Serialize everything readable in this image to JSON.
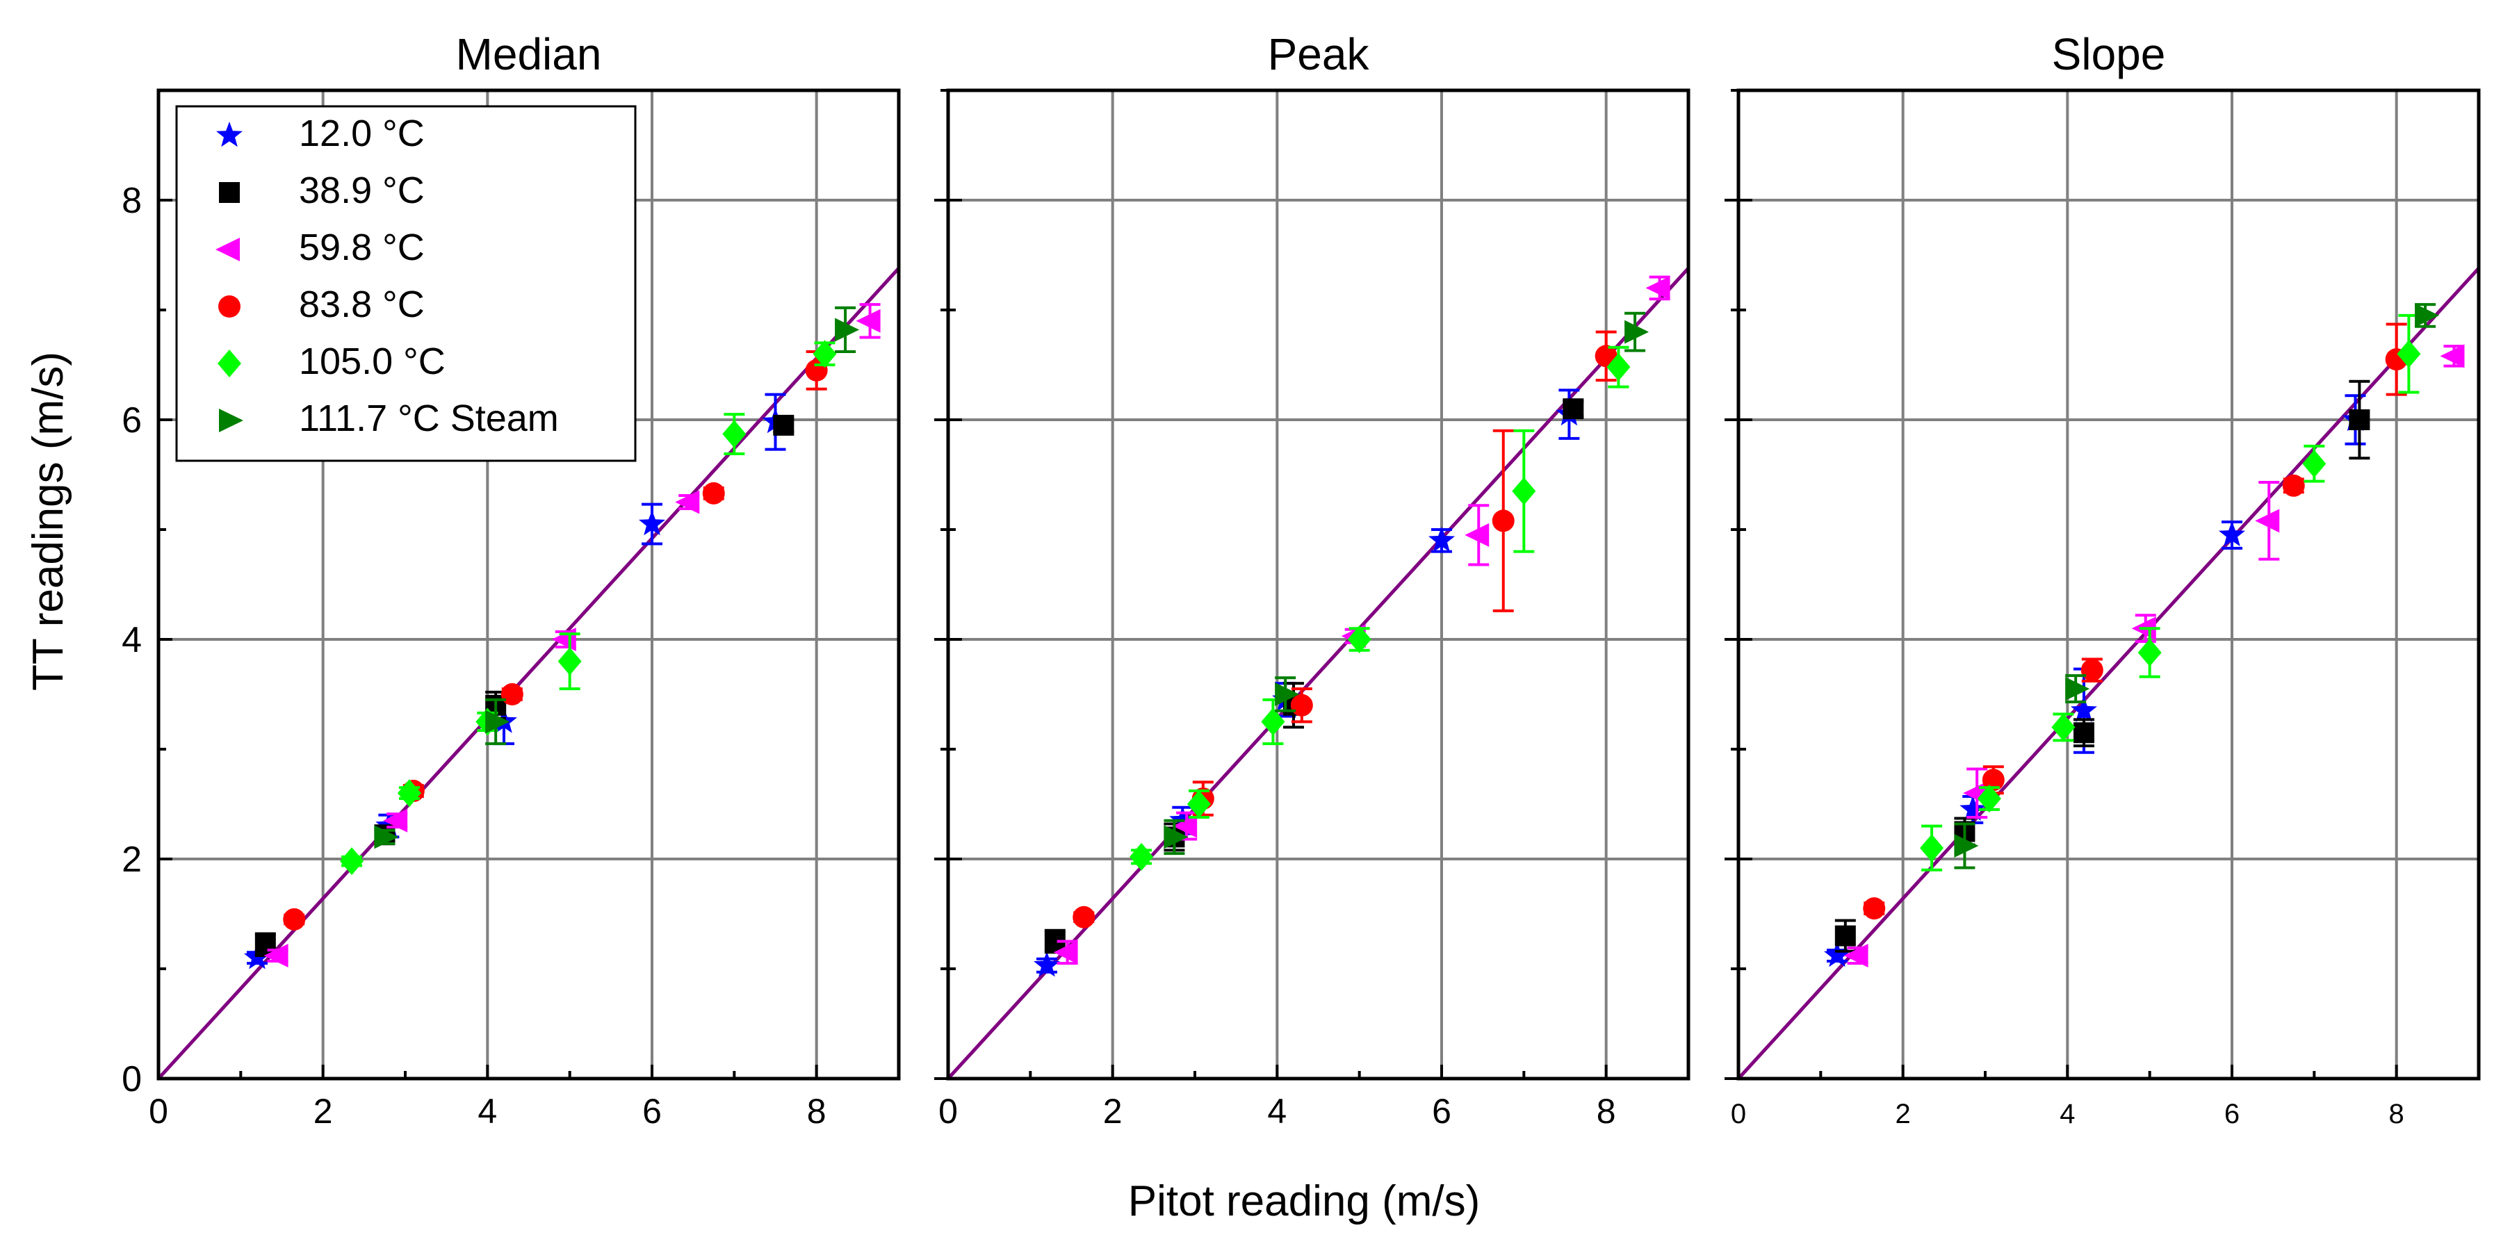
{
  "figure": {
    "x_axis_label": "Pitot reading (m/s)",
    "y_axis_label": "TT readings (m/s)"
  },
  "legend": {
    "placement": "top-left",
    "entries": [
      {
        "label": "12.0 °C",
        "marker": "star-icon",
        "color": "#0000ff"
      },
      {
        "label": "38.9 °C",
        "marker": "square-icon",
        "color": "#000000"
      },
      {
        "label": "59.8 °C",
        "marker": "left-triangle-icon",
        "color": "#ff00ff"
      },
      {
        "label": "83.8 °C",
        "marker": "circle-icon",
        "color": "#ff0000"
      },
      {
        "label": "105.0 °C",
        "marker": "diamond-icon",
        "color": "#00ff00"
      },
      {
        "label": "111.7 °C Steam",
        "marker": "right-triangle-icon",
        "color": "#007f00"
      }
    ]
  },
  "fit_line": {
    "color": "#800080",
    "slope": 0.82,
    "intercept": 0
  },
  "chart_data": [
    {
      "type": "scatter",
      "title": "Median",
      "xlabel": "Pitot reading (m/s)",
      "ylabel": "TT readings (m/s)",
      "xlim": [
        0,
        9
      ],
      "ylim": [
        0,
        9
      ],
      "xticks": [
        "0",
        "2",
        "4",
        "6",
        "8"
      ],
      "yticks": [
        "0",
        "2",
        "4",
        "6",
        "8"
      ],
      "grid": true,
      "series": [
        {
          "name": "12.0 °C",
          "points": [
            [
              1.2,
              1.1,
              0.05
            ],
            [
              2.8,
              2.3,
              0.1
            ],
            [
              4.2,
              3.25,
              0.2
            ],
            [
              6.0,
              5.05,
              0.18
            ],
            [
              7.5,
              5.98,
              0.25
            ]
          ]
        },
        {
          "name": "38.9 °C",
          "points": [
            [
              1.3,
              1.22,
              0.1
            ],
            [
              2.75,
              2.22,
              0.06
            ],
            [
              4.1,
              3.4,
              0.12
            ],
            [
              7.6,
              5.95,
              0.06
            ]
          ]
        },
        {
          "name": "59.8 °C",
          "points": [
            [
              1.45,
              1.12,
              0.05
            ],
            [
              2.9,
              2.35,
              0.06
            ],
            [
              4.95,
              4.0,
              0.07
            ],
            [
              6.45,
              5.25,
              0.06
            ],
            [
              8.65,
              6.9,
              0.15
            ]
          ]
        },
        {
          "name": "83.8 °C",
          "points": [
            [
              1.65,
              1.45,
              0.04
            ],
            [
              3.1,
              2.62,
              0.05
            ],
            [
              4.3,
              3.5,
              0.05
            ],
            [
              6.75,
              5.33,
              0.05
            ],
            [
              8.0,
              6.45,
              0.17
            ]
          ]
        },
        {
          "name": "105.0 °C",
          "points": [
            [
              2.35,
              1.98,
              0.04
            ],
            [
              3.05,
              2.6,
              0.05
            ],
            [
              4.0,
              3.25,
              0.08
            ],
            [
              5.0,
              3.8,
              0.25
            ],
            [
              7.0,
              5.87,
              0.18
            ],
            [
              8.1,
              6.6,
              0.1
            ]
          ]
        },
        {
          "name": "111.7 °C Steam",
          "points": [
            [
              2.75,
              2.2,
              0.06
            ],
            [
              4.1,
              3.25,
              0.2
            ],
            [
              8.35,
              6.82,
              0.2
            ]
          ]
        }
      ]
    },
    {
      "type": "scatter",
      "title": "Peak",
      "xlabel": "Pitot reading (m/s)",
      "ylabel": "",
      "xlim": [
        0,
        9
      ],
      "ylim": [
        0,
        9
      ],
      "xticks": [
        "0",
        "2",
        "4",
        "6",
        "8"
      ],
      "yticks": [],
      "grid": true,
      "series": [
        {
          "name": "12.0 °C",
          "points": [
            [
              1.2,
              1.03,
              0.06
            ],
            [
              2.85,
              2.35,
              0.12
            ],
            [
              4.1,
              3.45,
              0.15
            ],
            [
              6.0,
              4.9,
              0.1
            ],
            [
              7.55,
              6.05,
              0.22
            ]
          ]
        },
        {
          "name": "38.9 °C",
          "points": [
            [
              1.3,
              1.25,
              0.1
            ],
            [
              2.75,
              2.2,
              0.12
            ],
            [
              4.2,
              3.4,
              0.2
            ],
            [
              7.6,
              6.1,
              0.07
            ]
          ]
        },
        {
          "name": "59.8 °C",
          "points": [
            [
              1.45,
              1.15,
              0.1
            ],
            [
              2.9,
              2.3,
              0.12
            ],
            [
              4.95,
              4.03,
              0.06
            ],
            [
              6.45,
              4.95,
              0.27
            ],
            [
              8.65,
              7.2,
              0.1
            ]
          ]
        },
        {
          "name": "83.8 °C",
          "points": [
            [
              1.65,
              1.47,
              0.04
            ],
            [
              3.1,
              2.55,
              0.15
            ],
            [
              4.3,
              3.4,
              0.15
            ],
            [
              6.75,
              5.08,
              0.82
            ],
            [
              8.0,
              6.58,
              0.22
            ]
          ]
        },
        {
          "name": "105.0 °C",
          "points": [
            [
              2.35,
              2.02,
              0.06
            ],
            [
              3.05,
              2.5,
              0.12
            ],
            [
              3.95,
              3.25,
              0.2
            ],
            [
              5.0,
              4.0,
              0.1
            ],
            [
              7.0,
              5.35,
              0.55
            ],
            [
              8.15,
              6.48,
              0.18
            ]
          ]
        },
        {
          "name": "111.7 °C Steam",
          "points": [
            [
              2.75,
              2.2,
              0.15
            ],
            [
              4.1,
              3.5,
              0.15
            ],
            [
              8.35,
              6.8,
              0.17
            ]
          ]
        }
      ]
    },
    {
      "type": "scatter",
      "title": "Slope",
      "xlabel": "Pitot reading (m/s)",
      "ylabel": "",
      "xlim": [
        0,
        9
      ],
      "ylim": [
        0,
        9
      ],
      "xticks": [
        "0",
        "2",
        "4",
        "6",
        "8"
      ],
      "yticks": [],
      "grid": true,
      "series": [
        {
          "name": "12.0 °C",
          "points": [
            [
              1.2,
              1.12,
              0.05
            ],
            [
              2.85,
              2.45,
              0.12
            ],
            [
              4.2,
              3.35,
              0.38
            ],
            [
              6.0,
              4.95,
              0.12
            ],
            [
              7.5,
              6.0,
              0.22
            ]
          ]
        },
        {
          "name": "38.9 °C",
          "points": [
            [
              1.3,
              1.3,
              0.14
            ],
            [
              2.75,
              2.25,
              0.12
            ],
            [
              4.2,
              3.15,
              0.12
            ],
            [
              7.55,
              6.0,
              0.35
            ]
          ]
        },
        {
          "name": "59.8 °C",
          "points": [
            [
              1.45,
              1.12,
              0.07
            ],
            [
              2.9,
              2.6,
              0.22
            ],
            [
              4.95,
              4.1,
              0.12
            ],
            [
              6.45,
              5.08,
              0.35
            ],
            [
              8.7,
              6.58,
              0.09
            ]
          ]
        },
        {
          "name": "83.8 °C",
          "points": [
            [
              1.65,
              1.55,
              0.05
            ],
            [
              3.1,
              2.72,
              0.12
            ],
            [
              4.3,
              3.72,
              0.1
            ],
            [
              6.75,
              5.4,
              0.06
            ],
            [
              8.0,
              6.55,
              0.32
            ]
          ]
        },
        {
          "name": "105.0 °C",
          "points": [
            [
              2.35,
              2.1,
              0.2
            ],
            [
              3.05,
              2.55,
              0.1
            ],
            [
              3.95,
              3.2,
              0.12
            ],
            [
              5.0,
              3.88,
              0.22
            ],
            [
              7.0,
              5.6,
              0.16
            ],
            [
              8.15,
              6.6,
              0.35
            ]
          ]
        },
        {
          "name": "111.7 °C Steam",
          "points": [
            [
              2.75,
              2.12,
              0.2
            ],
            [
              4.1,
              3.55,
              0.12
            ],
            [
              8.35,
              6.95,
              0.1
            ]
          ]
        }
      ]
    }
  ]
}
